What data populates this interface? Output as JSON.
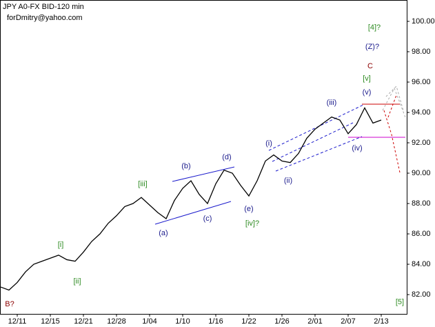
{
  "chart_data": {
    "type": "line",
    "title": "JPY A0-FX BID-120 min",
    "subtitle": "forDmitry@yahoo.com",
    "categories": [
      null,
      null,
      "12/11",
      null,
      null,
      null,
      "12/15",
      null,
      null,
      null,
      "12/21",
      null,
      null,
      null,
      "12/28",
      null,
      null,
      null,
      "1/04",
      null,
      null,
      null,
      "1/10",
      null,
      null,
      null,
      "1/16",
      null,
      null,
      null,
      "1/22",
      null,
      null,
      null,
      "1/26",
      null,
      null,
      null,
      "2/01",
      null,
      null,
      null,
      "2/07",
      null,
      null,
      null,
      "2/13"
    ],
    "series": [
      {
        "name": null,
        "color": "#000000",
        "values": [
          82.5,
          82.3,
          82.8,
          83.5,
          84.0,
          84.2,
          84.4,
          84.6,
          84.3,
          84.2,
          84.8,
          85.5,
          86.0,
          86.7,
          87.2,
          87.8,
          88.0,
          88.4,
          87.9,
          87.4,
          87.0,
          88.2,
          89.0,
          89.5,
          88.6,
          88.0,
          89.3,
          90.2,
          90.0,
          89.2,
          88.5,
          89.5,
          90.8,
          91.2,
          90.8,
          90.7,
          91.3,
          92.3,
          92.9,
          93.3,
          93.7,
          93.5,
          92.6,
          93.2,
          94.3,
          93.3,
          93.5
        ]
      }
    ],
    "ylim": [
      80.73,
      101.18
    ],
    "yticks": [
      {
        "value": 82,
        "label": "82.00"
      },
      {
        "value": 84,
        "label": "84.00"
      },
      {
        "value": 86,
        "label": "86.00"
      },
      {
        "value": 88,
        "label": "88.00"
      },
      {
        "value": 90,
        "label": "90.00"
      },
      {
        "value": 92,
        "label": "92.00"
      },
      {
        "value": 94,
        "label": "94.00"
      },
      {
        "value": 96,
        "label": "96.00"
      },
      {
        "value": 98,
        "label": "98.00"
      },
      {
        "value": 100,
        "label": "100.00"
      }
    ],
    "annotations": [
      "[4]?",
      "(Z)?",
      "C",
      "[v]",
      "(v)",
      "(iii)",
      "(i)",
      "(iv)",
      "(ii)",
      "(d)",
      "(b)",
      "[iii]",
      "(c)",
      "(e)",
      "[iv]?",
      "(a)",
      "[i]",
      "[ii]",
      "B?",
      "[5]"
    ]
  }
}
